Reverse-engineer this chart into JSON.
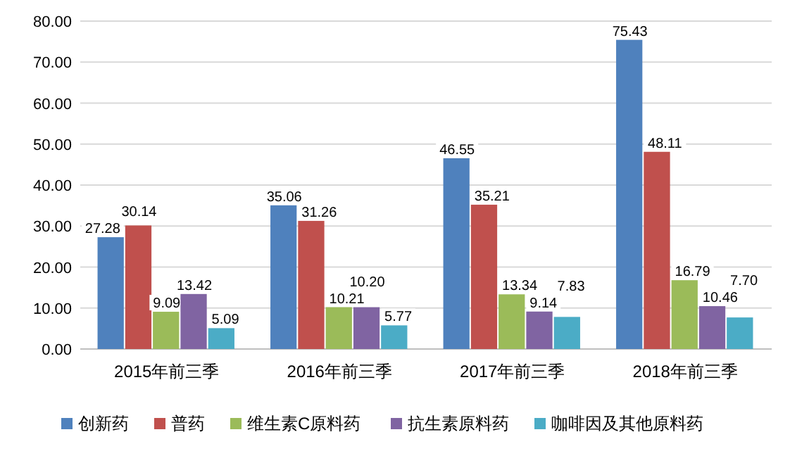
{
  "chart_data": {
    "type": "bar",
    "categories": [
      "2015年前三季",
      "2016年前三季",
      "2017年前三季",
      "2018年前三季"
    ],
    "series": [
      {
        "name": "创新药",
        "color": "#4f81bd",
        "values": [
          27.28,
          35.06,
          46.55,
          75.43
        ],
        "value_labels": [
          "27.28",
          "35.06",
          "46.55",
          "75.43"
        ]
      },
      {
        "name": "普药",
        "color": "#c0504d",
        "values": [
          30.14,
          31.26,
          35.21,
          48.11
        ],
        "value_labels": [
          "30.14",
          "31.26",
          "35.21",
          "48.11"
        ]
      },
      {
        "name": "维生素C原料药",
        "color": "#9bbb59",
        "values": [
          9.09,
          10.21,
          13.34,
          16.79
        ],
        "value_labels": [
          "9.09",
          "10.21",
          "13.34",
          "16.79"
        ]
      },
      {
        "name": "抗生素原料药",
        "color": "#8064a2",
        "values": [
          13.42,
          10.2,
          9.14,
          10.46
        ],
        "value_labels": [
          "13.42",
          "10.20",
          "9.14",
          "10.46"
        ]
      },
      {
        "name": "咖啡因及其他原料药",
        "color": "#4bacc6",
        "values": [
          5.09,
          5.77,
          7.83,
          7.7
        ],
        "value_labels": [
          "5.09",
          "5.77",
          "7.83",
          "7.70"
        ]
      }
    ],
    "ylim": [
      0,
      80
    ],
    "yticks": [
      {
        "value": 0,
        "label": "0.00"
      },
      {
        "value": 10,
        "label": "10.00"
      },
      {
        "value": 20,
        "label": "20.00"
      },
      {
        "value": 30,
        "label": "30.00"
      },
      {
        "value": 40,
        "label": "40.00"
      },
      {
        "value": 50,
        "label": "50.00"
      },
      {
        "value": 60,
        "label": "60.00"
      },
      {
        "value": 70,
        "label": "70.00"
      },
      {
        "value": 80,
        "label": "80.00"
      }
    ],
    "grid": "y",
    "legend": "bottom"
  }
}
